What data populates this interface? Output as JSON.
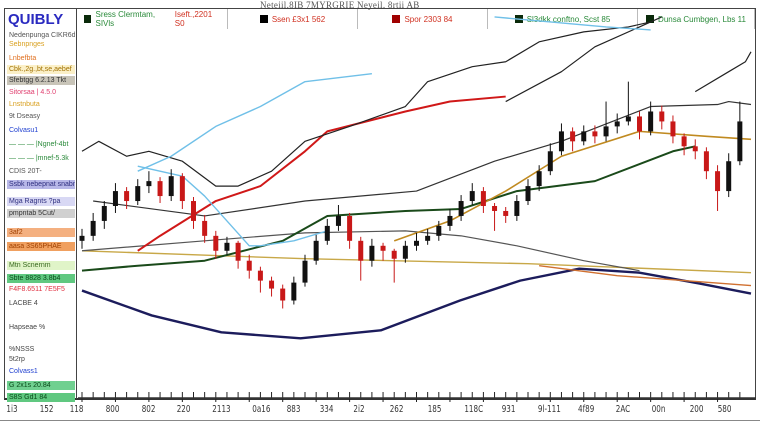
{
  "header": "Neteiil.8IB  7MYRGRIE  Neyeil. 8rtii  AB",
  "logo": "QUIBLY",
  "legend": [
    {
      "label": "Sress Clermtam, SIVls",
      "extra": "Iseft.,2201 S0",
      "color": "#0a2a0a",
      "text_color": "#2a8a3a"
    },
    {
      "label": "Ssen £3x1 562",
      "color": "#000000",
      "text_color": "#d03020"
    },
    {
      "label": "Spor 2303 84",
      "color": "#a00000",
      "text_color": "#d03020"
    },
    {
      "label": "Sl3dkk conftno, Scst 85",
      "color": "#0a2a0a",
      "text_color": "#2a8a3a"
    },
    {
      "label": "Dunsa Cumbgen, Lbs 11",
      "color": "#0a2a0a",
      "text_color": "#2a8a3a"
    }
  ],
  "sidebar": [
    {
      "text": "Nedenpunga CIKR6d",
      "color": "#555",
      "bg": "#fff"
    },
    {
      "text": "Sebnpnges",
      "color": "#d9a020",
      "bg": "#fff"
    },
    {
      "text": "Lnbefbta",
      "color": "#e07020",
      "bg": "#fff"
    },
    {
      "text": "Cbk.,2g.,bt,se,aebef",
      "color": "#a07000",
      "bg": "#fbf0c8"
    },
    {
      "text": "Sfebtgg 6.2.13 Tkt",
      "color": "#333",
      "bg": "#c8c4b8"
    },
    {
      "text": "Sitorsaa   | 4.5.0",
      "color": "#e04070",
      "bg": "#fff"
    },
    {
      "text": "Lnstnbuta",
      "color": "#d9a020",
      "bg": "#fff"
    },
    {
      "text": "9t          Dseasy",
      "color": "#555",
      "bg": "#fff"
    },
    {
      "text": "Colvasu1",
      "color": "#2040d0",
      "bg": "#fff"
    },
    {
      "text": "— — — |Ngnef-4bt",
      "color": "#2a8a3a",
      "bg": "#fff"
    },
    {
      "text": "— — — |mnef-5.3k",
      "color": "#2a8a3a",
      "bg": "#fff"
    },
    {
      "text": "       CDIS 20T-",
      "color": "#555",
      "bg": "#fff"
    },
    {
      "text": "Ssbk nebepnat snabnsd",
      "color": "#303080",
      "bg": "#b8b8e8"
    },
    {
      "text": "Mga Ragnts     ?pa",
      "color": "#303080",
      "bg": "#d8d8f4"
    },
    {
      "text": "pmpntab 5Cut/",
      "color": "#333",
      "bg": "#d0d0d0"
    },
    {
      "text": "          3af2",
      "color": "#a04000",
      "bg": "#f4b080"
    },
    {
      "text": "aasa 3S65PHAE",
      "color": "#a04000",
      "bg": "#f0a060"
    },
    {
      "text": "Mtn Scnernm",
      "color": "#3a6a20",
      "bg": "#e0f4c8"
    },
    {
      "text": "Sbte 8828 3.8b4",
      "color": "#0a4a1a",
      "bg": "#60c880"
    },
    {
      "text": "F4F8.6511  7E5F5",
      "color": "#e03040",
      "bg": "#fff"
    },
    {
      "text": "        LACBE 4",
      "color": "#444",
      "bg": "#fff"
    },
    {
      "text": "Hapseae       %",
      "color": "#444",
      "bg": "#fff"
    },
    {
      "text": "        %NSSS",
      "color": "#444",
      "bg": "#fff"
    },
    {
      "text": "        5t2rp",
      "color": "#444",
      "bg": "#fff"
    },
    {
      "text": "Colvass1",
      "color": "#2040d0",
      "bg": "#fff"
    },
    {
      "text": "  G 2x1s   20.84",
      "color": "#0a4a1a",
      "bg": "#70d090"
    },
    {
      "text": "  S8S Gd1     84",
      "color": "#0a4a1a",
      "bg": "#60c880"
    }
  ],
  "chart_data": {
    "type": "candlestick",
    "ylim": [
      0,
      390
    ],
    "grid": false,
    "legend_placement": "top",
    "x_tick_labels": [
      "1i3",
      "152",
      "118",
      "800",
      "802",
      "220",
      "2113",
      "0a16",
      "883",
      "334",
      "2i2",
      "262",
      "185",
      "118C",
      "931",
      "9l-111",
      "4f89",
      "2AC",
      "00n",
      "200",
      "580"
    ],
    "up_color": "#111111",
    "down_color": "#c81818",
    "ohlc": [
      [
        160,
        172,
        152,
        165
      ],
      [
        165,
        188,
        160,
        180
      ],
      [
        180,
        200,
        172,
        195
      ],
      [
        195,
        218,
        188,
        210
      ],
      [
        210,
        214,
        192,
        200
      ],
      [
        200,
        222,
        196,
        215
      ],
      [
        215,
        230,
        208,
        220
      ],
      [
        220,
        224,
        198,
        205
      ],
      [
        205,
        232,
        200,
        225
      ],
      [
        225,
        228,
        192,
        200
      ],
      [
        200,
        204,
        172,
        180
      ],
      [
        180,
        186,
        158,
        165
      ],
      [
        165,
        170,
        142,
        150
      ],
      [
        150,
        164,
        146,
        158
      ],
      [
        158,
        160,
        132,
        140
      ],
      [
        140,
        146,
        122,
        130
      ],
      [
        130,
        134,
        108,
        120
      ],
      [
        120,
        124,
        104,
        112
      ],
      [
        112,
        116,
        92,
        100
      ],
      [
        100,
        124,
        96,
        118
      ],
      [
        118,
        146,
        114,
        140
      ],
      [
        140,
        166,
        136,
        160
      ],
      [
        160,
        182,
        156,
        175
      ],
      [
        175,
        196,
        170,
        185
      ],
      [
        185,
        188,
        152,
        160
      ],
      [
        160,
        164,
        120,
        140
      ],
      [
        140,
        162,
        134,
        155
      ],
      [
        155,
        158,
        140,
        150
      ],
      [
        150,
        152,
        118,
        142
      ],
      [
        142,
        160,
        138,
        155
      ],
      [
        155,
        168,
        150,
        160
      ],
      [
        160,
        172,
        156,
        165
      ],
      [
        165,
        180,
        160,
        175
      ],
      [
        175,
        192,
        170,
        185
      ],
      [
        185,
        206,
        180,
        200
      ],
      [
        200,
        218,
        196,
        210
      ],
      [
        210,
        214,
        188,
        195
      ],
      [
        195,
        198,
        170,
        190
      ],
      [
        190,
        194,
        178,
        185
      ],
      [
        185,
        206,
        180,
        200
      ],
      [
        200,
        222,
        196,
        215
      ],
      [
        215,
        236,
        210,
        230
      ],
      [
        230,
        258,
        226,
        250
      ],
      [
        250,
        278,
        246,
        270
      ],
      [
        270,
        274,
        250,
        260
      ],
      [
        260,
        276,
        256,
        270
      ],
      [
        270,
        276,
        258,
        265
      ],
      [
        265,
        300,
        260,
        275
      ],
      [
        275,
        288,
        268,
        280
      ],
      [
        280,
        320,
        276,
        285
      ],
      [
        285,
        290,
        262,
        270
      ],
      [
        270,
        300,
        266,
        290
      ],
      [
        290,
        296,
        272,
        280
      ],
      [
        280,
        286,
        258,
        265
      ],
      [
        265,
        268,
        246,
        255
      ],
      [
        255,
        262,
        242,
        250
      ],
      [
        250,
        254,
        222,
        230
      ],
      [
        230,
        236,
        190,
        210
      ],
      [
        210,
        248,
        204,
        240
      ],
      [
        240,
        300,
        236,
        280
      ]
    ],
    "overlays": [
      {
        "color": "#1c1c5c",
        "width": 2.4,
        "points": [
          [
            0,
            110
          ],
          [
            6.25,
            85
          ],
          [
            12.5,
            68
          ],
          [
            19.6,
            62
          ],
          [
            26.8,
            70
          ],
          [
            33.9,
            100
          ],
          [
            39.3,
            120
          ],
          [
            44.6,
            132
          ],
          [
            50,
            128
          ],
          [
            55.4,
            117
          ],
          [
            60,
            107
          ]
        ]
      },
      {
        "color": "#c8a848",
        "width": 1.4,
        "points": [
          [
            0,
            150
          ],
          [
            20,
            142
          ],
          [
            40,
            137
          ],
          [
            60,
            128
          ]
        ]
      },
      {
        "color": "#d07030",
        "width": 1.4,
        "points": [
          [
            41,
            135
          ],
          [
            48,
            125
          ],
          [
            60,
            115
          ]
        ]
      },
      {
        "color": "#555555",
        "width": 1.2,
        "points": [
          [
            0,
            150
          ],
          [
            11,
            160
          ],
          [
            20,
            168
          ],
          [
            29,
            170
          ],
          [
            34,
            165
          ],
          [
            39,
            155
          ],
          [
            45,
            140
          ],
          [
            50,
            130
          ]
        ]
      },
      {
        "color": "#1a4a1a",
        "width": 2,
        "points": [
          [
            0,
            130
          ],
          [
            5,
            135
          ],
          [
            11,
            140
          ],
          [
            18,
            160
          ],
          [
            22,
            185
          ],
          [
            29,
            190
          ],
          [
            34,
            192
          ],
          [
            39,
            210
          ],
          [
            46,
            220
          ],
          [
            53,
            250
          ],
          [
            55,
            255
          ]
        ]
      },
      {
        "color": "#d01818",
        "width": 2,
        "points": [
          [
            5,
            150
          ],
          [
            7,
            165
          ],
          [
            12,
            200
          ],
          [
            16,
            215
          ],
          [
            20,
            250
          ],
          [
            22,
            270
          ],
          [
            29,
            290
          ],
          [
            33,
            300
          ],
          [
            38,
            305
          ]
        ]
      },
      {
        "color": "#c08a20",
        "width": 1.6,
        "points": [
          [
            28,
            160
          ],
          [
            33,
            180
          ],
          [
            38,
            210
          ],
          [
            43,
            245
          ],
          [
            50,
            270
          ],
          [
            56,
            265
          ],
          [
            60,
            262
          ]
        ]
      },
      {
        "color": "#333333",
        "width": 1.2,
        "points": [
          [
            1,
            200
          ],
          [
            11,
            185
          ],
          [
            20,
            200
          ],
          [
            30,
            210
          ],
          [
            37,
            240
          ],
          [
            43,
            260
          ],
          [
            51,
            295
          ],
          [
            57,
            297
          ],
          [
            58,
            300
          ],
          [
            60,
            297
          ]
        ]
      },
      {
        "color": "#222222",
        "width": 1.2,
        "points": [
          [
            0,
            250
          ],
          [
            1.5,
            260
          ],
          [
            4,
            245
          ],
          [
            6,
            250
          ],
          [
            9,
            240
          ],
          [
            12,
            215
          ],
          [
            14,
            215
          ],
          [
            17,
            230
          ],
          [
            20,
            260
          ],
          [
            24,
            275
          ],
          [
            29,
            295
          ],
          [
            31,
            320
          ],
          [
            35,
            335
          ],
          [
            38,
            340
          ],
          [
            41,
            360
          ],
          [
            45,
            370
          ],
          [
            49,
            375
          ],
          [
            51,
            380
          ]
        ]
      },
      {
        "color": "#222222",
        "width": 1.2,
        "points": [
          [
            38,
            300
          ],
          [
            43,
            330
          ],
          [
            46,
            355
          ],
          [
            50,
            375
          ],
          [
            52,
            385
          ]
        ]
      },
      {
        "color": "#222222",
        "width": 1.2,
        "points": [
          [
            55,
            310
          ],
          [
            58,
            330
          ],
          [
            59.5,
            340
          ],
          [
            60,
            350
          ]
        ]
      },
      {
        "color": "#70c0e8",
        "width": 1.4,
        "points": [
          [
            5,
            230
          ],
          [
            8,
            245
          ],
          [
            12,
            275
          ],
          [
            16,
            295
          ],
          [
            20,
            320
          ],
          [
            26,
            328
          ]
        ]
      },
      {
        "color": "#70c0e8",
        "width": 1.4,
        "points": [
          [
            5,
            235
          ],
          [
            9,
            225
          ],
          [
            11,
            205
          ],
          [
            13,
            180
          ],
          [
            15,
            155
          ],
          [
            16,
            155
          ],
          [
            19,
            160
          ],
          [
            22,
            170
          ]
        ]
      },
      {
        "color": "#70c0e8",
        "width": 1.4,
        "points": [
          [
            37,
            385
          ],
          [
            42,
            380
          ],
          [
            47,
            375
          ],
          [
            51,
            372
          ]
        ]
      }
    ]
  }
}
